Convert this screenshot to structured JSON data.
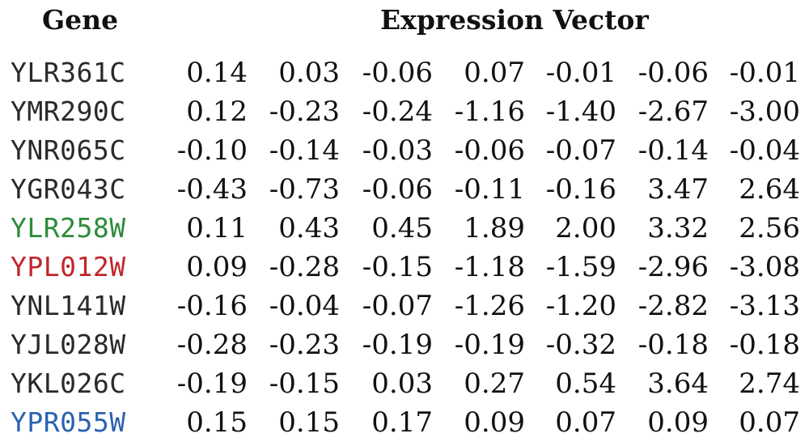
{
  "headers": {
    "gene": "Gene",
    "expression": "Expression Vector"
  },
  "rows": [
    {
      "gene": "YLR361C",
      "color": "#2a2a2a",
      "values": [
        "0.14",
        "0.03",
        "-0.06",
        "0.07",
        "-0.01",
        "-0.06",
        "-0.01"
      ]
    },
    {
      "gene": "YMR290C",
      "color": "#2a2a2a",
      "values": [
        "0.12",
        "-0.23",
        "-0.24",
        "-1.16",
        "-1.40",
        "-2.67",
        "-3.00"
      ]
    },
    {
      "gene": "YNR065C",
      "color": "#2a2a2a",
      "values": [
        "-0.10",
        "-0.14",
        "-0.03",
        "-0.06",
        "-0.07",
        "-0.14",
        "-0.04"
      ]
    },
    {
      "gene": "YGR043C",
      "color": "#2a2a2a",
      "values": [
        "-0.43",
        "-0.73",
        "-0.06",
        "-0.11",
        "-0.16",
        "3.47",
        "2.64"
      ]
    },
    {
      "gene": "YLR258W",
      "color": "#2e8b3a",
      "values": [
        "0.11",
        "0.43",
        "0.45",
        "1.89",
        "2.00",
        "3.32",
        "2.56"
      ]
    },
    {
      "gene": "YPL012W",
      "color": "#c0272d",
      "values": [
        "0.09",
        "-0.28",
        "-0.15",
        "-1.18",
        "-1.59",
        "-2.96",
        "-3.08"
      ]
    },
    {
      "gene": "YNL141W",
      "color": "#2a2a2a",
      "values": [
        "-0.16",
        "-0.04",
        "-0.07",
        "-1.26",
        "-1.20",
        "-2.82",
        "-3.13"
      ]
    },
    {
      "gene": "YJL028W",
      "color": "#2a2a2a",
      "values": [
        "-0.28",
        "-0.23",
        "-0.19",
        "-0.19",
        "-0.32",
        "-0.18",
        "-0.18"
      ]
    },
    {
      "gene": "YKL026C",
      "color": "#2a2a2a",
      "values": [
        "-0.19",
        "-0.15",
        "0.03",
        "0.27",
        "0.54",
        "3.64",
        "2.74"
      ]
    },
    {
      "gene": "YPR055W",
      "color": "#2b62b0",
      "values": [
        "0.15",
        "0.15",
        "0.17",
        "0.09",
        "0.07",
        "0.09",
        "0.07"
      ]
    }
  ]
}
